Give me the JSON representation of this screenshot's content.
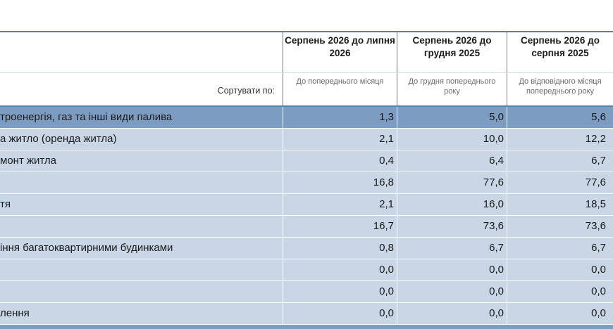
{
  "table": {
    "columns": [
      {
        "header": "Серпень 2026 до липня 2026",
        "sub": "До попереднього місяця"
      },
      {
        "header": "Серпень 2026 до грудня 2025",
        "sub": "До грудня попереднього року"
      },
      {
        "header": "Серпень 2026 до серпня 2025",
        "sub": "До відповідного місяця попереднього року"
      }
    ],
    "sort_label": "Сортувати по:",
    "rows": [
      {
        "label": "троенергія, газ та інші види палива",
        "values": [
          "1,3",
          "5,0",
          "5,6"
        ],
        "selected": true
      },
      {
        "label": "а житло (оренда житла)",
        "values": [
          "2,1",
          "10,0",
          "12,2"
        ]
      },
      {
        "label": "монт житла",
        "values": [
          "0,4",
          "6,4",
          "6,7"
        ]
      },
      {
        "label": "",
        "values": [
          "16,8",
          "77,6",
          "77,6"
        ]
      },
      {
        "label": "тя",
        "values": [
          "2,1",
          "16,0",
          "18,5"
        ]
      },
      {
        "label": "",
        "values": [
          "16,7",
          "73,6",
          "73,6"
        ]
      },
      {
        "label": "іння багатоквартирними будинками",
        "values": [
          "0,8",
          "6,7",
          "6,7"
        ]
      },
      {
        "label": "",
        "values": [
          "0,0",
          "0,0",
          "0,0"
        ]
      },
      {
        "label": "",
        "values": [
          "0,0",
          "0,0",
          "0,0"
        ]
      },
      {
        "label": "лення",
        "values": [
          "0,0",
          "0,0",
          "0,0"
        ]
      }
    ]
  },
  "colors": {
    "header_border": "#5b7fa6",
    "row_bg": "#c8d6e5",
    "row_selected_bg": "#7d9cc1"
  }
}
